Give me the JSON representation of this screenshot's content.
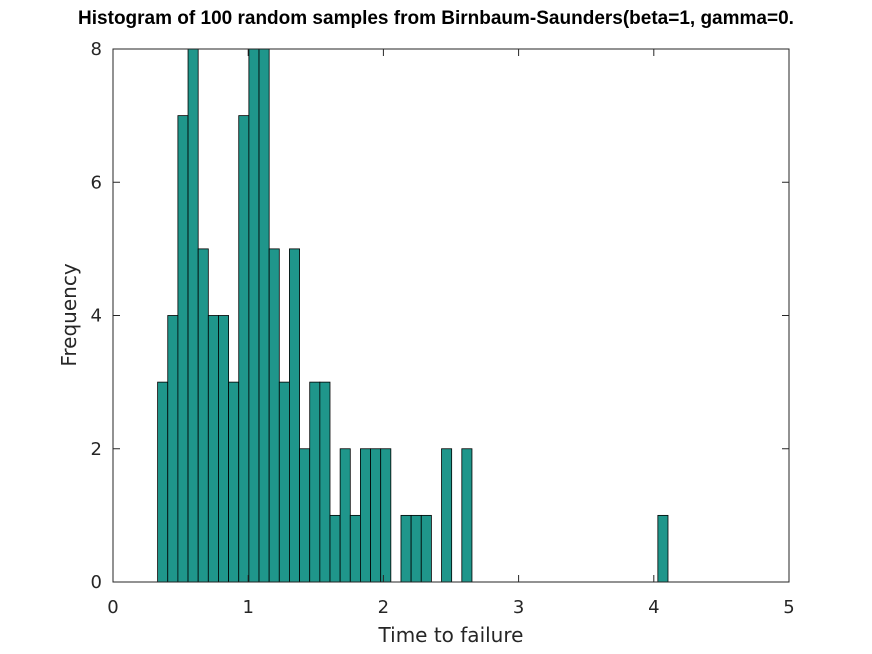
{
  "chart_data": {
    "type": "bar",
    "title": "Histogram of 100 random samples from Birnbaum-Saunders(beta=1, gamma=0.",
    "xlabel": "Time to failure",
    "ylabel": "Frequency",
    "xlim": [
      0,
      5
    ],
    "ylim": [
      0,
      8
    ],
    "xticks": [
      "0",
      "1",
      "2",
      "3",
      "4",
      "5"
    ],
    "yticks": [
      "0",
      "2",
      "4",
      "6",
      "8"
    ],
    "bin_width": 0.075,
    "grid": false,
    "bar_color": "#1f968b",
    "edge_color": "#000000",
    "bins": [
      {
        "x0": 0.33,
        "count": 3
      },
      {
        "x0": 0.405,
        "count": 4
      },
      {
        "x0": 0.48,
        "count": 7
      },
      {
        "x0": 0.555,
        "count": 8
      },
      {
        "x0": 0.63,
        "count": 5
      },
      {
        "x0": 0.705,
        "count": 4
      },
      {
        "x0": 0.78,
        "count": 4
      },
      {
        "x0": 0.855,
        "count": 3
      },
      {
        "x0": 0.93,
        "count": 7
      },
      {
        "x0": 1.005,
        "count": 8
      },
      {
        "x0": 1.08,
        "count": 8
      },
      {
        "x0": 1.155,
        "count": 5
      },
      {
        "x0": 1.23,
        "count": 3
      },
      {
        "x0": 1.305,
        "count": 5
      },
      {
        "x0": 1.38,
        "count": 2
      },
      {
        "x0": 1.455,
        "count": 3
      },
      {
        "x0": 1.53,
        "count": 3
      },
      {
        "x0": 1.605,
        "count": 1
      },
      {
        "x0": 1.68,
        "count": 2
      },
      {
        "x0": 1.755,
        "count": 1
      },
      {
        "x0": 1.83,
        "count": 2
      },
      {
        "x0": 1.905,
        "count": 2
      },
      {
        "x0": 1.98,
        "count": 2
      },
      {
        "x0": 2.13,
        "count": 1
      },
      {
        "x0": 2.205,
        "count": 1
      },
      {
        "x0": 2.28,
        "count": 1
      },
      {
        "x0": 2.43,
        "count": 2
      },
      {
        "x0": 2.58,
        "count": 2
      },
      {
        "x0": 4.03,
        "count": 1
      }
    ]
  }
}
